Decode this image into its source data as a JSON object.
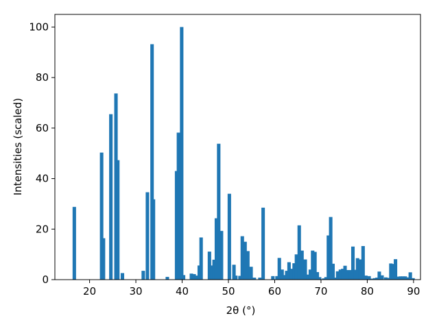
{
  "chart_data": {
    "type": "bar",
    "title": "",
    "xlabel": "2θ (°)",
    "ylabel": "Intensities (scaled)",
    "xlim": [
      12.5,
      91.5
    ],
    "ylim": [
      0,
      105
    ],
    "bar_width": 0.75,
    "grid": false,
    "color": "#1f77b4",
    "xticks": [
      20,
      30,
      40,
      50,
      60,
      70,
      80,
      90
    ],
    "yticks": [
      0,
      20,
      40,
      60,
      80,
      100
    ],
    "series": [
      {
        "x": [
          16.7,
          22.6,
          23.0,
          24.6,
          25.7,
          26.1,
          27.1,
          31.6,
          32.5,
          33.5,
          33.8,
          36.8,
          38.8,
          39.2,
          39.9,
          40.3,
          42.0,
          42.6,
          43.1,
          43.7,
          44.1,
          45.9,
          46.4,
          46.9,
          47.4,
          47.9,
          48.5,
          50.2,
          51.2,
          51.6,
          52.5,
          53.0,
          53.6,
          54.2,
          54.9,
          55.6,
          56.8,
          57.5,
          59.6,
          60.5,
          61.0,
          61.6,
          62.1,
          62.6,
          63.1,
          63.6,
          64.2,
          64.7,
          65.3,
          65.9,
          66.6,
          67.2,
          67.7,
          68.2,
          68.7,
          69.2,
          69.7,
          70.6,
          71.1,
          71.6,
          72.1,
          72.6,
          73.1,
          73.6,
          74.2,
          74.7,
          75.2,
          75.8,
          76.4,
          76.9,
          77.4,
          77.9,
          78.5,
          79.1,
          79.7,
          80.4,
          81.1,
          81.6,
          82.1,
          82.6,
          83.2,
          84.0,
          84.6,
          85.1,
          85.6,
          86.1,
          86.7,
          87.2,
          87.7,
          88.2,
          88.8,
          89.3,
          89.9
        ],
        "values": [
          28.8,
          50.3,
          16.4,
          65.5,
          73.7,
          47.3,
          2.6,
          3.5,
          34.6,
          93.2,
          31.8,
          1.1,
          43.0,
          58.2,
          100.0,
          1.8,
          2.4,
          2.2,
          1.6,
          5.6,
          16.7,
          11.1,
          5.6,
          7.9,
          24.3,
          53.8,
          19.3,
          34.0,
          5.9,
          1.6,
          1.5,
          17.2,
          15.0,
          11.3,
          5.1,
          0.8,
          0.8,
          28.5,
          1.4,
          1.4,
          8.6,
          4.0,
          1.8,
          3.5,
          6.9,
          4.3,
          6.5,
          10.0,
          21.5,
          11.5,
          8.0,
          2.0,
          4.0,
          11.5,
          11.0,
          3.0,
          1.0,
          0.5,
          1.0,
          17.5,
          24.8,
          6.3,
          0.8,
          3.3,
          4.0,
          4.3,
          5.5,
          3.8,
          3.8,
          13.1,
          3.9,
          8.5,
          8.0,
          13.3,
          1.6,
          1.4,
          0.4,
          0.6,
          0.8,
          3.2,
          1.7,
          0.9,
          0.7,
          6.4,
          6.2,
          8.1,
          1.2,
          1.3,
          1.3,
          1.3,
          0.9,
          2.9,
          0.6
        ]
      }
    ]
  }
}
